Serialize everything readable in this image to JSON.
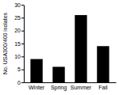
{
  "chart_data": {
    "type": "bar",
    "y_label": "No. USA300/400 isolates",
    "categories": [
      "Winter",
      "Spring",
      "Summer",
      "Fall"
    ],
    "values": [
      9,
      6,
      26,
      14
    ],
    "color": "#000000",
    "ylim": [
      0,
      30
    ],
    "yticks": [
      0,
      5,
      10,
      15,
      20,
      25,
      30
    ]
  }
}
